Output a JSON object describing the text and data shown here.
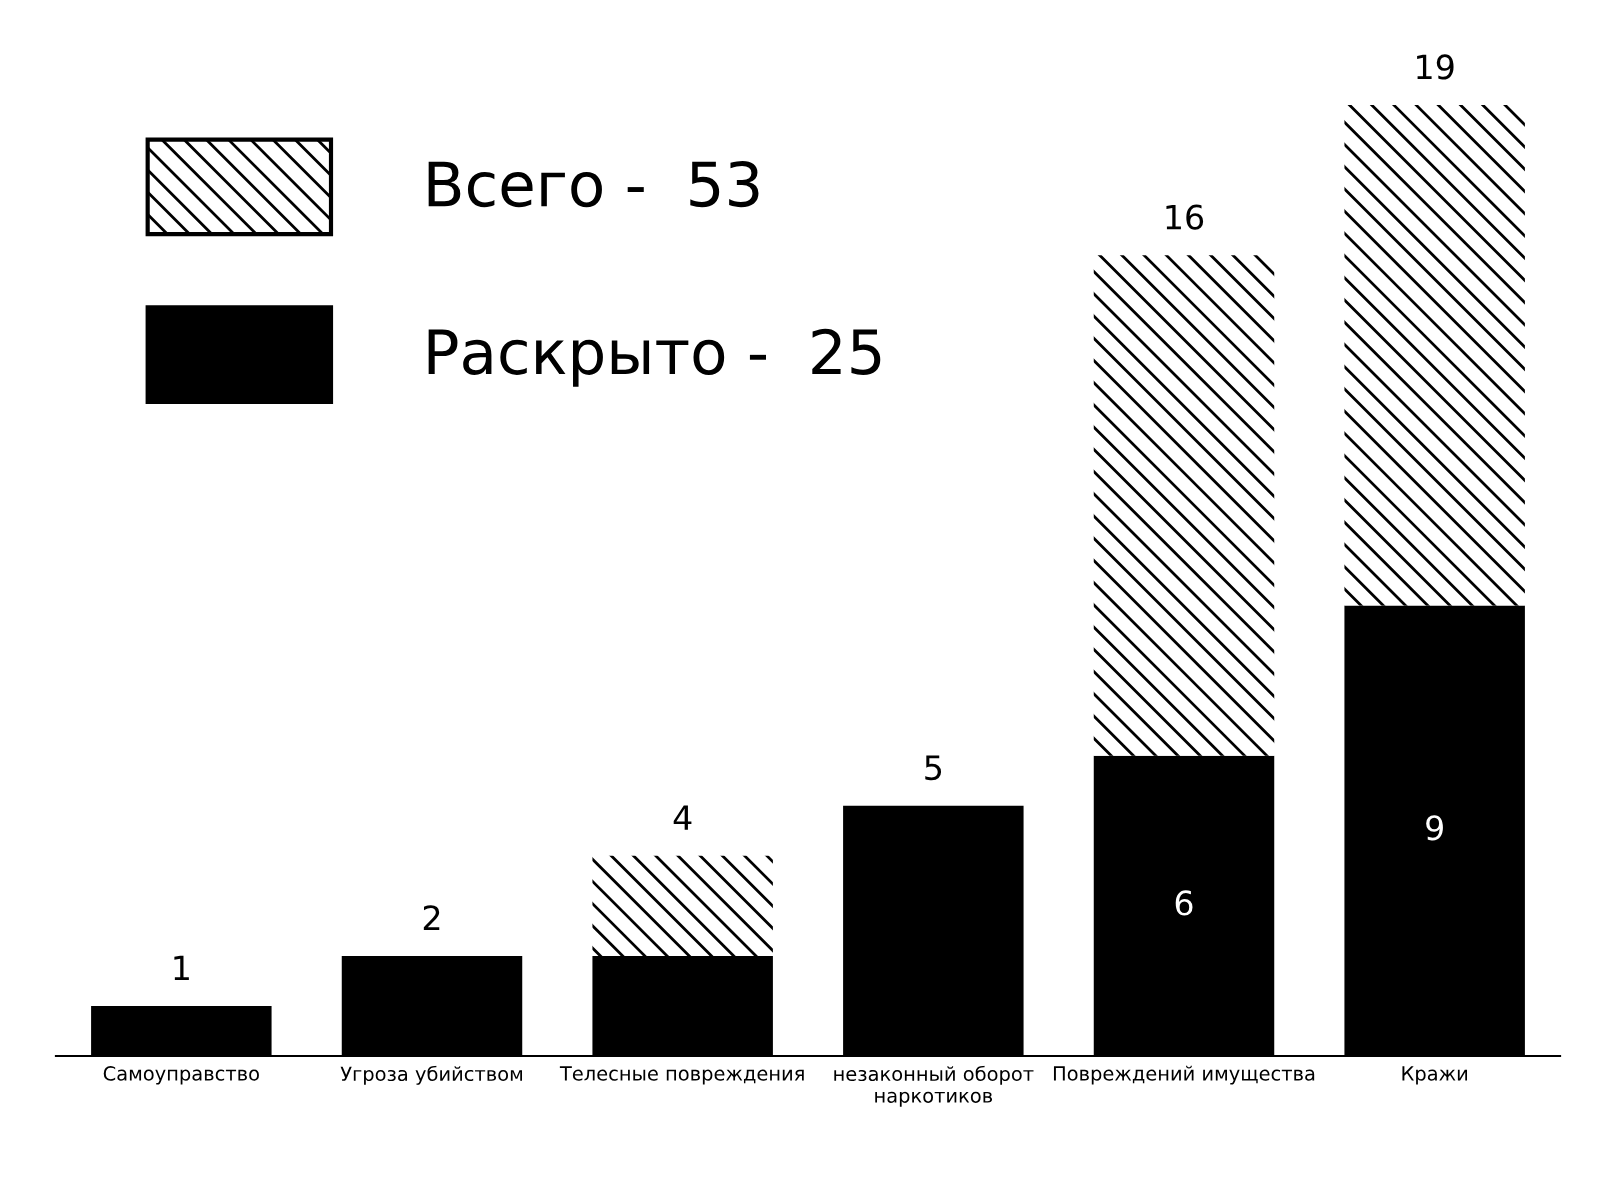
{
  "chart_data": {
    "type": "bar",
    "stacked": true,
    "categories": [
      "Самоуправство",
      "Угроза убийством",
      "Телесные повреждения",
      "незаконный оборот\nнаркотиков",
      "Повреждений имущества",
      "Кражи"
    ],
    "series": [
      {
        "name": "Раскрыто -  25",
        "color": "#000000",
        "values": [
          1,
          2,
          2,
          5,
          6,
          9
        ],
        "value_labels": [
          null,
          null,
          null,
          null,
          "6",
          "9"
        ]
      },
      {
        "name": "Всего -  53",
        "color": "#ffffff",
        "values": [
          0,
          0,
          2,
          0,
          10,
          10
        ]
      }
    ],
    "totals": [
      "1",
      "2",
      "4",
      "5",
      "16",
      "19"
    ],
    "legend": "top left",
    "grid": false
  }
}
